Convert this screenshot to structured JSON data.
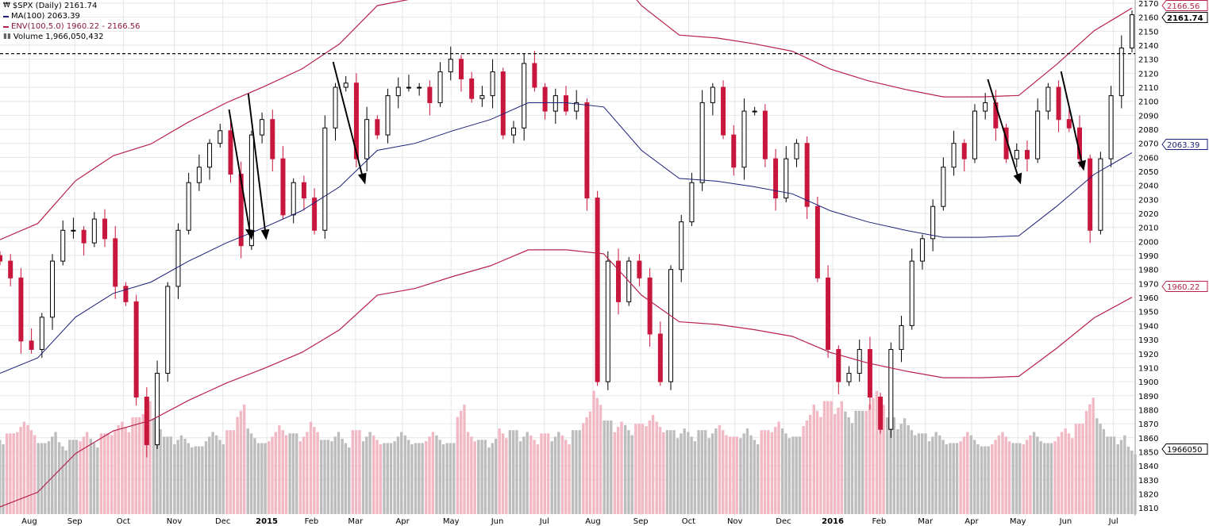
{
  "legend": {
    "symbol": "$SPX (Daily) 2161.74",
    "ma": "MA(100) 2063.39",
    "env": "ENV(100,5.0) 1960.22 - 2166.56",
    "volume": "Volume 1,966,050,432"
  },
  "chart_data": {
    "type": "candlestick",
    "title": "$SPX (Daily)",
    "ylim": [
      1805,
      2172
    ],
    "yticks": [
      1810,
      1820,
      1830,
      1840,
      1850,
      1860,
      1870,
      1880,
      1890,
      1900,
      1910,
      1920,
      1930,
      1940,
      1950,
      1960,
      1970,
      1980,
      1990,
      2000,
      2010,
      2020,
      2030,
      2040,
      2050,
      2060,
      2070,
      2080,
      2090,
      2100,
      2110,
      2120,
      2130,
      2140,
      2150,
      2160,
      2170
    ],
    "xticks": [
      "Aug",
      "Sep",
      "Oct",
      "Nov",
      "Dec",
      "2015",
      "Feb",
      "Mar",
      "Apr",
      "May",
      "Jun",
      "Jul",
      "Aug",
      "Sep",
      "Oct",
      "Nov",
      "Dec",
      "2016",
      "Feb",
      "Mar",
      "Apr",
      "May",
      "Jun",
      "Jul"
    ],
    "closes": [
      1986,
      1974,
      1929,
      1923,
      1946,
      1986,
      2008,
      2008,
      1999,
      2016,
      2002,
      1968,
      1957,
      1889,
      1855,
      1906,
      1968,
      2008,
      2042,
      2053,
      2070,
      2079,
      2048,
      1997,
      2076,
      2087,
      2059,
      2019,
      2042,
      2031,
      2008,
      2081,
      2110,
      2113,
      2059,
      2087,
      2076,
      2104,
      2110,
      2110,
      2110,
      2099,
      2121,
      2130,
      2116,
      2102,
      2104,
      2121,
      2076,
      2081,
      2127,
      2110,
      2093,
      2104,
      2093,
      2099,
      2031,
      1900,
      1986,
      1957,
      1986,
      1974,
      1934,
      1900,
      1980,
      2014,
      2042,
      2099,
      2110,
      2076,
      2053,
      2093,
      2093,
      2059,
      2031,
      2059,
      2070,
      2025,
      1974,
      1923,
      1900,
      1906,
      1923,
      1889,
      1866,
      1923,
      1940,
      1986,
      2002,
      2025,
      2053,
      2070,
      2059,
      2093,
      2099,
      2081,
      2059,
      2065,
      2059,
      2093,
      2110,
      2087,
      2081,
      2059,
      2008,
      2059,
      2104,
      2138,
      2161.74
    ],
    "volume_billions": [
      2.3,
      2.5,
      2.7,
      2.6,
      2.2,
      2.4,
      2.1,
      2.3,
      2.4,
      2.2,
      2.5,
      2.6,
      2.7,
      3.0,
      3.3,
      2.8,
      2.4,
      2.3,
      2.2,
      2.1,
      2.4,
      2.3,
      2.6,
      3.2,
      2.5,
      2.2,
      2.4,
      2.6,
      2.5,
      2.4,
      2.7,
      2.3,
      2.4,
      2.2,
      2.6,
      2.4,
      2.3,
      2.2,
      2.4,
      2.3,
      2.2,
      2.4,
      2.3,
      2.2,
      3.2,
      2.4,
      2.3,
      2.2,
      2.5,
      2.6,
      2.4,
      2.3,
      2.5,
      2.4,
      2.3,
      2.6,
      3.0,
      3.6,
      2.9,
      2.7,
      2.6,
      2.8,
      2.9,
      2.7,
      2.6,
      2.5,
      2.4,
      2.6,
      2.5,
      2.6,
      2.4,
      2.5,
      2.3,
      2.6,
      2.7,
      2.5,
      2.4,
      2.9,
      3.2,
      3.5,
      3.3,
      3.0,
      3.2,
      3.4,
      3.6,
      3.0,
      2.8,
      2.6,
      2.5,
      2.4,
      2.3,
      2.2,
      2.4,
      2.3,
      2.1,
      2.3,
      2.4,
      2.2,
      2.3,
      2.4,
      2.2,
      2.4,
      2.5,
      2.8,
      3.4,
      2.8,
      2.4,
      2.3,
      1.97
    ],
    "ma_period": 100,
    "ma_values": [
      1906,
      1917,
      1946,
      1963,
      1971,
      1986,
      1999,
      2010,
      2022,
      2039,
      2065,
      2070,
      2079,
      2087,
      2099,
      2099,
      2096,
      2065,
      2045,
      2043,
      2039,
      2034,
      2022,
      2014,
      2008,
      2003,
      2003,
      2004,
      2025,
      2048,
      2063.39
    ],
    "envelope_pct": 5.0,
    "horizontal_line": 2134,
    "last_labels": {
      "env_upper": "2166.56",
      "close": "2161.74",
      "ma": "2063.39",
      "env_lower": "1960.22",
      "volume": "1966050"
    },
    "colors": {
      "up": "#000000",
      "down": "#c8163c",
      "ma": "#1b1f78",
      "env": "#b8224a",
      "vol_down": "#f2b8c4",
      "vol_up": "#bdbdbd",
      "grid": "#e6e6e6"
    }
  }
}
